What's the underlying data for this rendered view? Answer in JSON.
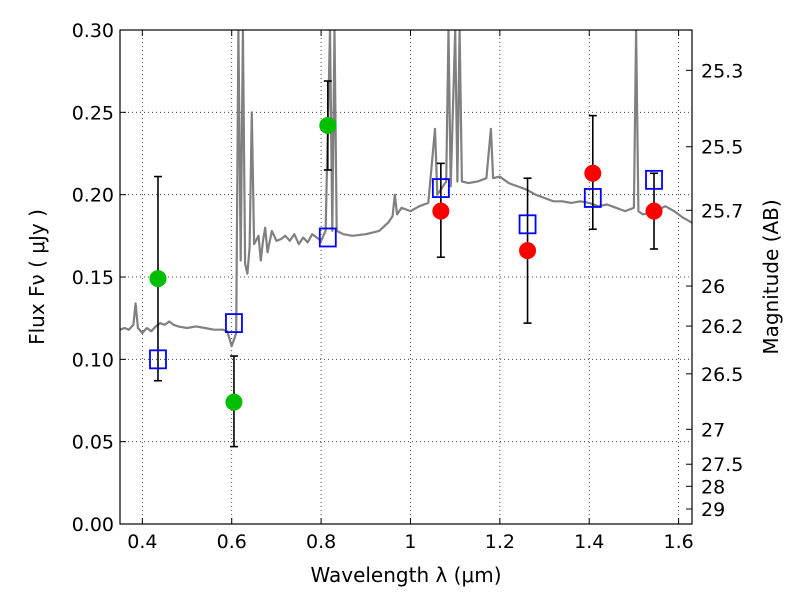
{
  "chart_data": {
    "type": "scatter",
    "xlabel": "Wavelength  λ (μm)",
    "ylabel": "Flux  Fν  ( μJy )",
    "y2label": "Magnitude (AB)",
    "xlim": [
      0.35,
      1.63
    ],
    "ylim": [
      0.0,
      0.3
    ],
    "grid": true,
    "x_ticks": [
      0.4,
      0.6,
      0.8,
      1.0,
      1.2,
      1.4,
      1.6
    ],
    "x_tick_labels": [
      "0.4",
      "0.6",
      "0.8",
      "1",
      "1.2",
      "1.4",
      "1.6"
    ],
    "y_ticks": [
      0.0,
      0.05,
      0.1,
      0.15,
      0.2,
      0.25,
      0.3
    ],
    "y_tick_labels": [
      "0.00",
      "0.05",
      "0.10",
      "0.15",
      "0.20",
      "0.25",
      "0.30"
    ],
    "mag_ticks": [
      {
        "label": "25.3",
        "flux": 0.2755
      },
      {
        "label": "25.5",
        "flux": 0.2291
      },
      {
        "label": "25.7",
        "flux": 0.1905
      },
      {
        "label": "26",
        "flux": 0.1445
      },
      {
        "label": "26.2",
        "flux": 0.1202
      },
      {
        "label": "26.5",
        "flux": 0.0912
      },
      {
        "label": "27",
        "flux": 0.0575
      },
      {
        "label": "27.5",
        "flux": 0.0363
      },
      {
        "label": "28",
        "flux": 0.0229
      },
      {
        "label": "29",
        "flux": 0.0091
      }
    ],
    "colors": {
      "model": "#808080",
      "green": "#00bf00",
      "red": "#ff0000",
      "square": "#0000ff",
      "errorbar": "#000000"
    },
    "series": [
      {
        "kind": "line",
        "points": [
          [
            0.35,
            0.118
          ],
          [
            0.36,
            0.119
          ],
          [
            0.37,
            0.118
          ],
          [
            0.38,
            0.121
          ],
          [
            0.385,
            0.134
          ],
          [
            0.39,
            0.119
          ],
          [
            0.4,
            0.116
          ],
          [
            0.41,
            0.119
          ],
          [
            0.42,
            0.117
          ],
          [
            0.43,
            0.12
          ],
          [
            0.44,
            0.122
          ],
          [
            0.45,
            0.121
          ],
          [
            0.46,
            0.123
          ],
          [
            0.47,
            0.121
          ],
          [
            0.48,
            0.12
          ],
          [
            0.5,
            0.119
          ],
          [
            0.52,
            0.12
          ],
          [
            0.54,
            0.119
          ],
          [
            0.56,
            0.118
          ],
          [
            0.58,
            0.118
          ],
          [
            0.59,
            0.117
          ],
          [
            0.6,
            0.108
          ],
          [
            0.61,
            0.116
          ],
          [
            0.615,
            0.3
          ],
          [
            0.62,
            0.16
          ],
          [
            0.625,
            0.3
          ],
          [
            0.63,
            0.158
          ],
          [
            0.635,
            0.152
          ],
          [
            0.64,
            0.168
          ],
          [
            0.645,
            0.25
          ],
          [
            0.65,
            0.17
          ],
          [
            0.66,
            0.175
          ],
          [
            0.665,
            0.16
          ],
          [
            0.67,
            0.172
          ],
          [
            0.675,
            0.18
          ],
          [
            0.68,
            0.165
          ],
          [
            0.69,
            0.178
          ],
          [
            0.7,
            0.172
          ],
          [
            0.71,
            0.173
          ],
          [
            0.72,
            0.175
          ],
          [
            0.73,
            0.172
          ],
          [
            0.74,
            0.176
          ],
          [
            0.75,
            0.17
          ],
          [
            0.76,
            0.174
          ],
          [
            0.77,
            0.171
          ],
          [
            0.78,
            0.176
          ],
          [
            0.8,
            0.172
          ],
          [
            0.81,
            0.178
          ],
          [
            0.82,
            0.3
          ],
          [
            0.825,
            0.178
          ],
          [
            0.83,
            0.3
          ],
          [
            0.835,
            0.178
          ],
          [
            0.85,
            0.176
          ],
          [
            0.87,
            0.175
          ],
          [
            0.9,
            0.176
          ],
          [
            0.93,
            0.178
          ],
          [
            0.95,
            0.183
          ],
          [
            0.96,
            0.187
          ],
          [
            0.965,
            0.2
          ],
          [
            0.97,
            0.188
          ],
          [
            0.98,
            0.192
          ],
          [
            1.0,
            0.19
          ],
          [
            1.02,
            0.193
          ],
          [
            1.04,
            0.195
          ],
          [
            1.055,
            0.24
          ],
          [
            1.06,
            0.2
          ],
          [
            1.08,
            0.208
          ],
          [
            1.085,
            0.3
          ],
          [
            1.09,
            0.205
          ],
          [
            1.1,
            0.3
          ],
          [
            1.105,
            0.208
          ],
          [
            1.11,
            0.3
          ],
          [
            1.115,
            0.208
          ],
          [
            1.13,
            0.207
          ],
          [
            1.15,
            0.208
          ],
          [
            1.17,
            0.21
          ],
          [
            1.18,
            0.24
          ],
          [
            1.185,
            0.21
          ],
          [
            1.2,
            0.211
          ],
          [
            1.22,
            0.207
          ],
          [
            1.24,
            0.205
          ],
          [
            1.26,
            0.203
          ],
          [
            1.28,
            0.2
          ],
          [
            1.3,
            0.198
          ],
          [
            1.32,
            0.196
          ],
          [
            1.34,
            0.196
          ],
          [
            1.36,
            0.195
          ],
          [
            1.38,
            0.196
          ],
          [
            1.4,
            0.195
          ],
          [
            1.42,
            0.193
          ],
          [
            1.44,
            0.194
          ],
          [
            1.46,
            0.192
          ],
          [
            1.48,
            0.19
          ],
          [
            1.5,
            0.192
          ],
          [
            1.505,
            0.3
          ],
          [
            1.51,
            0.19
          ],
          [
            1.52,
            0.188
          ],
          [
            1.55,
            0.19
          ],
          [
            1.57,
            0.193
          ],
          [
            1.59,
            0.19
          ],
          [
            1.61,
            0.186
          ],
          [
            1.63,
            0.183
          ]
        ]
      },
      {
        "kind": "scatter",
        "marker": "circle",
        "color_key": "green",
        "points": [
          {
            "x": 0.435,
            "y": 0.149,
            "err_low": 0.087,
            "err_high": 0.211
          },
          {
            "x": 0.605,
            "y": 0.074,
            "err_low": 0.047,
            "err_high": 0.102
          },
          {
            "x": 0.815,
            "y": 0.242,
            "err_low": 0.215,
            "err_high": 0.269
          }
        ]
      },
      {
        "kind": "scatter",
        "marker": "circle",
        "color_key": "red",
        "points": [
          {
            "x": 1.068,
            "y": 0.19,
            "err_low": 0.162,
            "err_high": 0.219
          },
          {
            "x": 1.262,
            "y": 0.166,
            "err_low": 0.122,
            "err_high": 0.21
          },
          {
            "x": 1.408,
            "y": 0.213,
            "err_low": 0.179,
            "err_high": 0.248
          },
          {
            "x": 1.545,
            "y": 0.19,
            "err_low": 0.167,
            "err_high": 0.213
          }
        ]
      },
      {
        "kind": "scatter",
        "marker": "square",
        "color_key": "square",
        "points": [
          {
            "x": 0.435,
            "y": 0.1
          },
          {
            "x": 0.605,
            "y": 0.122
          },
          {
            "x": 0.815,
            "y": 0.174
          },
          {
            "x": 1.068,
            "y": 0.204
          },
          {
            "x": 1.262,
            "y": 0.182
          },
          {
            "x": 1.408,
            "y": 0.198
          },
          {
            "x": 1.545,
            "y": 0.209
          }
        ]
      }
    ]
  }
}
